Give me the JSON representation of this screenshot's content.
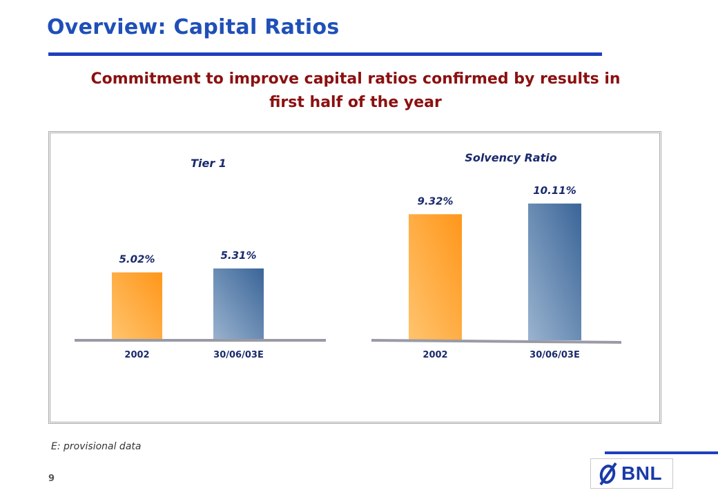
{
  "header": {
    "title": "Overview: Capital Ratios",
    "subtitle_line1": "Commitment to improve capital ratios confirmed by results in",
    "subtitle_line2": "first half of the year"
  },
  "colors": {
    "title": "#1f4fb8",
    "rule": "#1f3fbf",
    "subtitle": "#8b1010",
    "bar_2002": "#ff9a1f",
    "bar_2003": "#3b6aa0"
  },
  "chart_data": [
    {
      "type": "bar",
      "title": "Tier 1",
      "categories": [
        "2002",
        "30/06/03E"
      ],
      "values": [
        5.02,
        5.31
      ],
      "labels": [
        "5.02%",
        "5.31%"
      ],
      "unit": "%"
    },
    {
      "type": "bar",
      "title": "Solvency Ratio",
      "categories": [
        "2002",
        "30/06/03E"
      ],
      "values": [
        9.32,
        10.11
      ],
      "labels": [
        "9.32%",
        "10.11%"
      ],
      "unit": "%"
    }
  ],
  "footnote": "E: provisional data",
  "page_number": "9",
  "logo": {
    "text": "BNL",
    "icon": "bnl-logo-icon"
  }
}
